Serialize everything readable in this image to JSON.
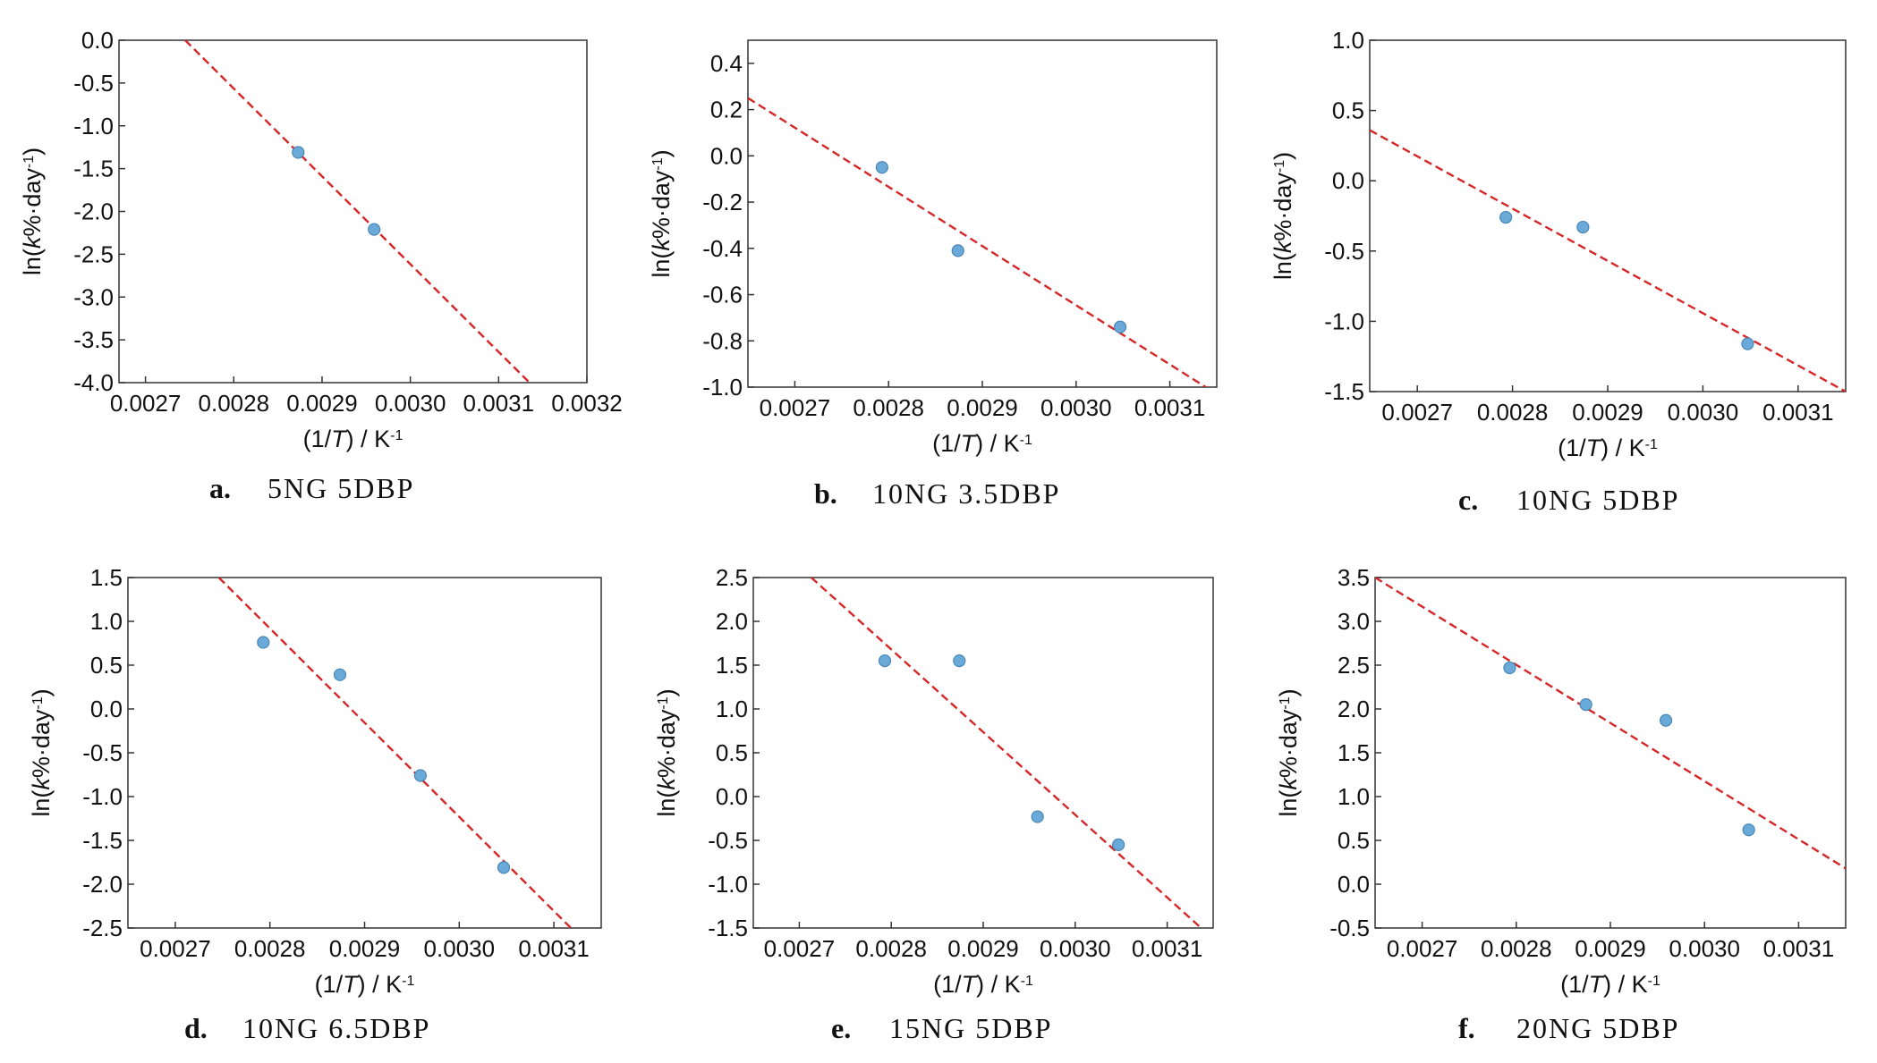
{
  "chart_data": [
    {
      "type": "scatter",
      "caption_letter": "a.",
      "caption": "5NG 5DBP",
      "xlabel": "(1/T) / K-1",
      "ylabel": "ln(k%·day-1)",
      "xlim": [
        0.00267,
        0.0032
      ],
      "ylim": [
        -4.0,
        0.0
      ],
      "xticks": [
        "0.0027",
        "0.0028",
        "0.0029",
        "0.0030",
        "0.0031",
        "0.0032"
      ],
      "yticks": [
        "0.0",
        "-0.5",
        "-1.0",
        "-1.5",
        "-2.0",
        "-2.5",
        "-3.0",
        "-3.5",
        "-4.0"
      ],
      "grid": false,
      "points": [
        {
          "x": 0.002873,
          "y": -1.31
        },
        {
          "x": 0.002959,
          "y": -2.21
        }
      ],
      "fit_line": {
        "x": [
          0.002745,
          0.003135
        ],
        "y": [
          0.0,
          -4.0
        ],
        "style": "dashed",
        "color": "#d62728"
      },
      "point_color": "#6aaad8"
    },
    {
      "type": "scatter",
      "caption_letter": "b.",
      "caption": "10NG 3.5DBP",
      "xlabel": "(1/T) / K-1",
      "ylabel": "ln(k%·day-1)",
      "xlim": [
        0.00265,
        0.00315
      ],
      "ylim": [
        -1.0,
        0.5
      ],
      "xticks": [
        "0.0027",
        "0.0028",
        "0.0029",
        "0.0030",
        "0.0031"
      ],
      "yticks": [
        "0.4",
        "0.2",
        "0.0",
        "-0.2",
        "-0.4",
        "-0.6",
        "-0.8",
        "-1.0"
      ],
      "grid": false,
      "points": [
        {
          "x": 0.002793,
          "y": -0.05
        },
        {
          "x": 0.002874,
          "y": -0.41
        },
        {
          "x": 0.003047,
          "y": -0.74
        }
      ],
      "fit_line": {
        "x": [
          0.00265,
          0.00315
        ],
        "y": [
          0.25,
          -1.03
        ],
        "style": "dashed",
        "color": "#d62728"
      },
      "point_color": "#6aaad8"
    },
    {
      "type": "scatter",
      "caption_letter": "c.",
      "caption": "10NG 5DBP",
      "xlabel": "(1/T) / K-1",
      "ylabel": "ln(k%·day-1)",
      "xlim": [
        0.00265,
        0.00315
      ],
      "ylim": [
        -1.5,
        1.0
      ],
      "xticks": [
        "0.0027",
        "0.0028",
        "0.0029",
        "0.0030",
        "0.0031"
      ],
      "yticks": [
        "1.0",
        "0.5",
        "0.0",
        "-0.5",
        "-1.0",
        "-1.5"
      ],
      "grid": false,
      "points": [
        {
          "x": 0.002793,
          "y": -0.26
        },
        {
          "x": 0.002874,
          "y": -0.33
        },
        {
          "x": 0.003047,
          "y": -1.16
        }
      ],
      "fit_line": {
        "x": [
          0.00265,
          0.00315
        ],
        "y": [
          0.36,
          -1.5
        ],
        "style": "dashed",
        "color": "#d62728"
      },
      "point_color": "#6aaad8"
    },
    {
      "type": "scatter",
      "caption_letter": "d.",
      "caption": "10NG 6.5DBP",
      "xlabel": "(1/T) / K-1",
      "ylabel": "ln(k%·day-1)",
      "xlim": [
        0.00265,
        0.00315
      ],
      "ylim": [
        -2.5,
        1.5
      ],
      "xticks": [
        "0.0027",
        "0.0028",
        "0.0029",
        "0.0030",
        "0.0031"
      ],
      "yticks": [
        "1.5",
        "1.0",
        "0.5",
        "0.0",
        "-0.5",
        "-1.0",
        "-1.5",
        "-2.0",
        "-2.5"
      ],
      "grid": false,
      "points": [
        {
          "x": 0.002793,
          "y": 0.76
        },
        {
          "x": 0.002874,
          "y": 0.39
        },
        {
          "x": 0.002959,
          "y": -0.76
        },
        {
          "x": 0.003047,
          "y": -1.81
        }
      ],
      "fit_line": {
        "x": [
          0.002746,
          0.003118
        ],
        "y": [
          1.5,
          -2.5
        ],
        "style": "dashed",
        "color": "#d62728"
      },
      "point_color": "#6aaad8"
    },
    {
      "type": "scatter",
      "caption_letter": "e.",
      "caption": "15NG 5DBP",
      "xlabel": "(1/T) / K-1",
      "ylabel": "ln(k%·day-1)",
      "xlim": [
        0.00265,
        0.00315
      ],
      "ylim": [
        -1.5,
        2.5
      ],
      "xticks": [
        "0.0027",
        "0.0028",
        "0.0029",
        "0.0030",
        "0.0031"
      ],
      "yticks": [
        "2.5",
        "2.0",
        "1.5",
        "1.0",
        "0.5",
        "0.0",
        "-0.5",
        "-1.0",
        "-1.5"
      ],
      "grid": false,
      "points": [
        {
          "x": 0.002793,
          "y": 1.55
        },
        {
          "x": 0.002874,
          "y": 1.55
        },
        {
          "x": 0.002959,
          "y": -0.23
        },
        {
          "x": 0.003047,
          "y": -0.55
        }
      ],
      "fit_line": {
        "x": [
          0.002713,
          0.003137
        ],
        "y": [
          2.5,
          -1.5
        ],
        "style": "dashed",
        "color": "#d62728"
      },
      "point_color": "#6aaad8"
    },
    {
      "type": "scatter",
      "caption_letter": "f.",
      "caption": "20NG 5DBP",
      "xlabel": "(1/T) / K-1",
      "ylabel": "ln(k%·day-1)",
      "xlim": [
        0.00265,
        0.00315
      ],
      "ylim": [
        -0.5,
        3.5
      ],
      "xticks": [
        "0.0027",
        "0.0028",
        "0.0029",
        "0.0030",
        "0.0031"
      ],
      "yticks": [
        "3.5",
        "3.0",
        "2.5",
        "2.0",
        "1.5",
        "1.0",
        "0.5",
        "0.0",
        "-0.5"
      ],
      "grid": false,
      "points": [
        {
          "x": 0.002793,
          "y": 2.47
        },
        {
          "x": 0.002874,
          "y": 2.05
        },
        {
          "x": 0.002959,
          "y": 1.87
        },
        {
          "x": 0.003047,
          "y": 0.62
        }
      ],
      "fit_line": {
        "x": [
          0.00265,
          0.00315
        ],
        "y": [
          3.5,
          0.18
        ],
        "style": "dashed",
        "color": "#d62728"
      },
      "point_color": "#6aaad8"
    }
  ]
}
